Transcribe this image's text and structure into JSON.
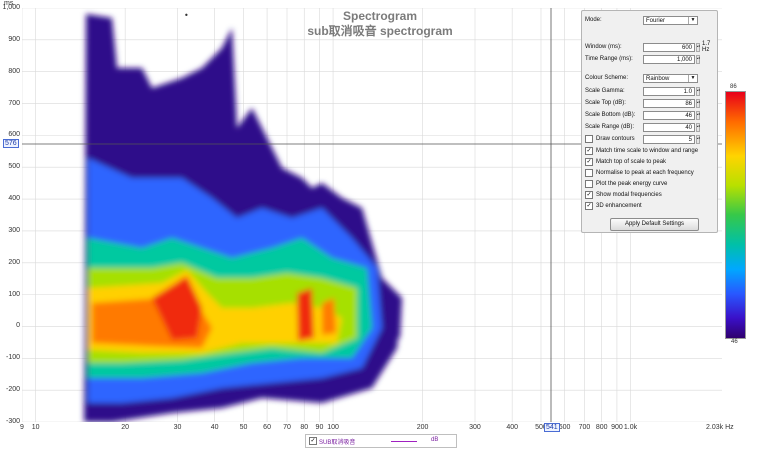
{
  "chart": {
    "title": "Spectrogram",
    "subtitle": "sub取消吸音 spectrogram",
    "y_unit": "ms",
    "y_ticks": [
      "1,000",
      "900",
      "800",
      "700",
      "600",
      "500",
      "400",
      "300",
      "200",
      "100",
      "0",
      "-100",
      "-200",
      "-300"
    ],
    "x_ticks": [
      "9",
      "10",
      "20",
      "30",
      "40",
      "50",
      "60",
      "70",
      "80",
      "90",
      "100",
      "200",
      "300",
      "400",
      "500",
      "600",
      "700",
      "800",
      "900",
      "1.0k"
    ],
    "x_unit": "2.03k Hz",
    "cursor_y": "576",
    "cursor_x": "541",
    "scale_top_label": "86",
    "scale_bottom_label": "46"
  },
  "chart_data": {
    "type": "heatmap",
    "title": "Spectrogram",
    "subtitle": "sub取消吸音 spectrogram",
    "xlabel": "Hz",
    "ylabel": "ms",
    "xscale": "log",
    "xlim": [
      9,
      2030
    ],
    "ylim": [
      -300,
      1000
    ],
    "colorbar": [
      46,
      86
    ],
    "peaks": [
      {
        "freq": 30,
        "time_ms": 40,
        "level": 86
      },
      {
        "freq": 60,
        "time_ms": 40,
        "level": 80
      },
      {
        "freq": 80,
        "time_ms": 20,
        "level": 84
      },
      {
        "freq": 95,
        "time_ms": 10,
        "level": 78
      }
    ]
  },
  "panel": {
    "mode_label": "Mode:",
    "mode_value": "Fourier",
    "window_label": "Window (ms):",
    "window_value": "600",
    "window_unit": "1.7 Hz",
    "time_range_label": "Time Range (ms):",
    "time_range_value": "1,000",
    "colour_label": "Colour Scheme:",
    "colour_value": "Rainbow",
    "gamma_label": "Scale Gamma:",
    "gamma_value": "1.0",
    "top_label": "Scale Top (dB):",
    "top_value": "86",
    "bottom_label": "Scale Bottom (dB):",
    "bottom_value": "46",
    "range_label": "Scale Range (dB):",
    "range_value": "40",
    "contours_label": "Draw contours",
    "contours_value": "5",
    "cb1": "Match time scale to window and range",
    "cb2": "Match top of scale to peak",
    "cb3": "Normalise to peak at each frequency",
    "cb4": "Plot the peak energy curve",
    "cb5": "Show modal frequencies",
    "cb6": "3D enhancement",
    "apply_button": "Apply Default Settings"
  },
  "legend": {
    "name": "SUB取消吸音",
    "unit": "dB"
  },
  "colors": {
    "legend_line": "#a020c0"
  }
}
